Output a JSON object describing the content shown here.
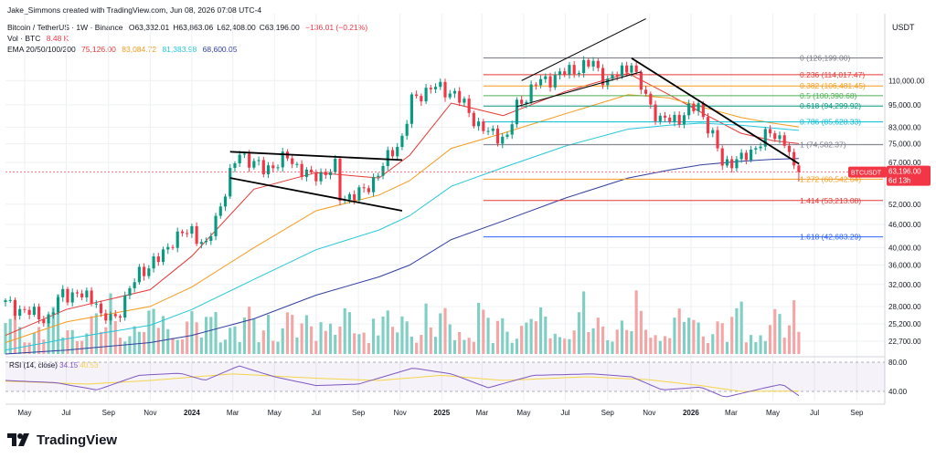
{
  "header": {
    "created_by": "Jake_Simmons created with TradingView.com, Jun 08, 2026 07:08 UTC-4",
    "symbol": "Bitcoin / TetherUS · 1W · Binance",
    "ohlc": {
      "o": "O63,332.01",
      "h": "H63,863.06",
      "l": "L62,408.00",
      "c": "C63,196.00",
      "chg": "−136.01 (−0.21%)"
    },
    "vol_label": "Vol · BTC",
    "vol_value": "8.48 K",
    "ema_label": "EMA 20/50/100/200",
    "ema_values": [
      {
        "value": "75,126.00",
        "color": "#e53935"
      },
      {
        "value": "83,084.72",
        "color": "#f59b1c"
      },
      {
        "value": "81,383.98",
        "color": "#26c6da"
      },
      {
        "value": "68,600.05",
        "color": "#303f9f"
      }
    ]
  },
  "currency": "USDT",
  "price_badge": {
    "symbol": "BTCUSDT",
    "price": "63,196.00",
    "countdown": "6d 13h"
  },
  "footer": {
    "brand": "TradingView"
  },
  "chart_data": {
    "type": "candlestick",
    "log_scale": true,
    "ylim": [
      21000,
      165000
    ],
    "y_ticks": [
      {
        "label": "110,000.00",
        "value": 110000
      },
      {
        "label": "95,000.00",
        "value": 95000
      },
      {
        "label": "83,000.00",
        "value": 83000
      },
      {
        "label": "75,000.00",
        "value": 75000
      },
      {
        "label": "67,000.00",
        "value": 67000
      },
      {
        "label": "52,000.00",
        "value": 52000
      },
      {
        "label": "46,000.00",
        "value": 46000
      },
      {
        "label": "40,000.00",
        "value": 40000
      },
      {
        "label": "36,000.00",
        "value": 36000
      },
      {
        "label": "32,000.00",
        "value": 32000
      },
      {
        "label": "28,000.00",
        "value": 28000
      },
      {
        "label": "25,200.00",
        "value": 25200
      },
      {
        "label": "22,700.00",
        "value": 22700
      }
    ],
    "x_ticks": [
      "May",
      "Jul",
      "Sep",
      "Nov",
      "2024",
      "Mar",
      "May",
      "Jul",
      "Sep",
      "Nov",
      "2025",
      "Mar",
      "May",
      "Jul",
      "Sep",
      "Nov",
      "2026",
      "Mar",
      "May",
      "Jul",
      "Sep"
    ],
    "x_tick_dates": [
      "2023-05-01",
      "2023-07-01",
      "2023-09-01",
      "2023-11-01",
      "2024-01-01",
      "2024-03-01",
      "2024-05-01",
      "2024-07-01",
      "2024-09-01",
      "2024-11-01",
      "2025-01-01",
      "2025-03-01",
      "2025-05-01",
      "2025-07-01",
      "2025-09-01",
      "2025-11-01",
      "2026-01-01",
      "2026-03-01",
      "2026-05-01",
      "2026-07-01",
      "2026-09-01"
    ],
    "x_range": [
      "2023-04-03",
      "2026-10-12"
    ],
    "close_path": [
      [
        "2023-04-03",
        28500
      ],
      [
        "2023-05-01",
        27200
      ],
      [
        "2023-06-05",
        26000
      ],
      [
        "2023-06-26",
        30500
      ],
      [
        "2023-08-14",
        29300
      ],
      [
        "2023-08-21",
        26000
      ],
      [
        "2023-09-11",
        26200
      ],
      [
        "2023-10-16",
        34500
      ],
      [
        "2023-11-13",
        37200
      ],
      [
        "2023-12-04",
        42000
      ],
      [
        "2024-01-01",
        44500
      ],
      [
        "2024-01-22",
        40000
      ],
      [
        "2024-02-26",
        62000
      ],
      [
        "2024-03-11",
        71000
      ],
      [
        "2024-04-15",
        64000
      ],
      [
        "2024-05-20",
        69000
      ],
      [
        "2024-06-24",
        61000
      ],
      [
        "2024-07-29",
        65000
      ],
      [
        "2024-08-05",
        54000
      ],
      [
        "2024-09-09",
        56000
      ],
      [
        "2024-09-30",
        63000
      ],
      [
        "2024-11-04",
        78000
      ],
      [
        "2024-11-18",
        97000
      ],
      [
        "2024-12-16",
        106000
      ],
      [
        "2025-01-20",
        102000
      ],
      [
        "2025-02-24",
        84000
      ],
      [
        "2025-03-10",
        80000
      ],
      [
        "2025-04-07",
        78000
      ],
      [
        "2025-04-21",
        94000
      ],
      [
        "2025-05-19",
        108000
      ],
      [
        "2025-07-14",
        118000
      ],
      [
        "2025-08-11",
        122000
      ],
      [
        "2025-09-01",
        109000
      ],
      [
        "2025-10-06",
        123000
      ],
      [
        "2025-10-13",
        111000
      ],
      [
        "2025-11-17",
        86000
      ],
      [
        "2025-12-15",
        88000
      ],
      [
        "2026-01-12",
        95000
      ],
      [
        "2026-02-02",
        78000
      ],
      [
        "2026-02-16",
        67000
      ],
      [
        "2026-03-16",
        68000
      ],
      [
        "2026-04-13",
        76000
      ],
      [
        "2026-04-27",
        80000
      ],
      [
        "2026-05-18",
        77000
      ],
      [
        "2026-06-01",
        63332
      ],
      [
        "2026-06-08",
        63196
      ]
    ],
    "ema_series": [
      {
        "name": "EMA 20",
        "color": "#e53935",
        "points": [
          [
            "2023-04-03",
            23500
          ],
          [
            "2023-07-01",
            27500
          ],
          [
            "2023-11-01",
            31000
          ],
          [
            "2024-01-01",
            38000
          ],
          [
            "2024-04-01",
            57000
          ],
          [
            "2024-07-01",
            63000
          ],
          [
            "2024-10-01",
            61000
          ],
          [
            "2024-11-15",
            70000
          ],
          [
            "2025-01-15",
            96000
          ],
          [
            "2025-04-01",
            89000
          ],
          [
            "2025-07-01",
            103000
          ],
          [
            "2025-10-01",
            115000
          ],
          [
            "2025-11-30",
            101000
          ],
          [
            "2026-01-15",
            91000
          ],
          [
            "2026-03-15",
            80000
          ],
          [
            "2026-05-01",
            76500
          ],
          [
            "2026-06-08",
            75126
          ]
        ]
      },
      {
        "name": "EMA 50",
        "color": "#f59b1c",
        "points": [
          [
            "2023-04-03",
            22500
          ],
          [
            "2023-07-01",
            25500
          ],
          [
            "2023-11-01",
            28000
          ],
          [
            "2024-01-01",
            31500
          ],
          [
            "2024-04-01",
            40000
          ],
          [
            "2024-07-01",
            50000
          ],
          [
            "2024-10-01",
            55000
          ],
          [
            "2024-11-15",
            60000
          ],
          [
            "2025-01-15",
            73000
          ],
          [
            "2025-04-01",
            80000
          ],
          [
            "2025-07-01",
            90000
          ],
          [
            "2025-10-01",
            101000
          ],
          [
            "2025-11-30",
            99000
          ],
          [
            "2026-01-15",
            94000
          ],
          [
            "2026-03-15",
            88000
          ],
          [
            "2026-05-01",
            85000
          ],
          [
            "2026-06-08",
            83084.72
          ]
        ]
      },
      {
        "name": "EMA 100",
        "color": "#26c6da",
        "points": [
          [
            "2023-04-03",
            21500
          ],
          [
            "2023-07-01",
            23000
          ],
          [
            "2023-11-01",
            25000
          ],
          [
            "2024-01-01",
            27500
          ],
          [
            "2024-04-01",
            33000
          ],
          [
            "2024-07-01",
            39500
          ],
          [
            "2024-10-01",
            44500
          ],
          [
            "2024-11-15",
            48500
          ],
          [
            "2025-01-15",
            58000
          ],
          [
            "2025-04-01",
            65000
          ],
          [
            "2025-07-01",
            74000
          ],
          [
            "2025-10-01",
            82000
          ],
          [
            "2025-11-30",
            84000
          ],
          [
            "2026-01-15",
            85000
          ],
          [
            "2026-03-15",
            84000
          ],
          [
            "2026-05-01",
            82500
          ],
          [
            "2026-06-08",
            81383.98
          ]
        ]
      },
      {
        "name": "EMA 200",
        "color": "#303f9f",
        "points": [
          [
            "2023-04-03",
            21000
          ],
          [
            "2023-07-01",
            21500
          ],
          [
            "2023-11-01",
            22500
          ],
          [
            "2024-01-01",
            23500
          ],
          [
            "2024-04-01",
            26000
          ],
          [
            "2024-07-01",
            30000
          ],
          [
            "2024-10-01",
            33500
          ],
          [
            "2024-11-15",
            36000
          ],
          [
            "2025-01-15",
            42000
          ],
          [
            "2025-04-01",
            47000
          ],
          [
            "2025-07-01",
            54000
          ],
          [
            "2025-10-01",
            61000
          ],
          [
            "2025-11-30",
            64000
          ],
          [
            "2026-01-15",
            66000
          ],
          [
            "2026-03-15",
            67500
          ],
          [
            "2026-05-01",
            68300
          ],
          [
            "2026-06-08",
            68600.05
          ]
        ]
      }
    ],
    "fib_levels": [
      {
        "ratio": "0",
        "price": 126199.0,
        "label": "0 (126,199.00)",
        "color": "#787b86"
      },
      {
        "ratio": "0.236",
        "price": 114017.47,
        "label": "0.236 (114,017.47)",
        "color": "#e53935"
      },
      {
        "ratio": "0.382",
        "price": 106481.45,
        "label": "0.382 (106,481.45)",
        "color": "#f59b1c"
      },
      {
        "ratio": "0.5",
        "price": 100390.68,
        "label": "0.5 (100,390.68)",
        "color": "#4caf50"
      },
      {
        "ratio": "0.618",
        "price": 94299.92,
        "label": "0.618 (94,299.92)",
        "color": "#089981"
      },
      {
        "ratio": "0.786",
        "price": 85628.33,
        "label": "0.786 (85,628.33)",
        "color": "#00bcd4"
      },
      {
        "ratio": "1",
        "price": 74582.37,
        "label": "1 (74,582.37)",
        "color": "#787b86"
      },
      {
        "ratio": "1.272",
        "price": 60542.64,
        "label": "1.272 (60,542.64)",
        "color": "#f59b1c"
      },
      {
        "ratio": "1.414",
        "price": 53213.08,
        "label": "1.414 (53,213.08)",
        "color": "#e53935"
      },
      {
        "ratio": "1.618",
        "price": 42683.29,
        "label": "1.618 (42,683.29)",
        "color": "#2962ff"
      }
    ],
    "fib_start_date": "2025-03-03",
    "trendlines": [
      {
        "name": "flag-upper",
        "points": [
          [
            "2024-02-26",
            71500
          ],
          [
            "2024-11-04",
            68000
          ]
        ]
      },
      {
        "name": "flag-lower",
        "points": [
          [
            "2024-02-26",
            61000
          ],
          [
            "2024-11-04",
            50000
          ]
        ]
      },
      {
        "name": "channel-upper",
        "points": [
          [
            "2025-04-28",
            110000
          ],
          [
            "2025-10-27",
            160000
          ]
        ]
      },
      {
        "name": "channel-lower",
        "points": [
          [
            "2025-04-21",
            94000
          ],
          [
            "2025-10-20",
            116000
          ]
        ]
      },
      {
        "name": "downtrend",
        "points": [
          [
            "2025-10-06",
            126000
          ],
          [
            "2026-06-08",
            66500
          ]
        ]
      }
    ],
    "rsi": {
      "label": "RSI (14, close)",
      "value": "34.15",
      "ma_value": "40.53",
      "levels": [
        {
          "label": "80.00",
          "value": 80
        },
        {
          "label": "40.00",
          "value": 40
        }
      ],
      "ylim": [
        30,
        85
      ],
      "line_color": "#7e57c2",
      "ma_color": "#f5d547",
      "points": [
        [
          "2023-04-03",
          55
        ],
        [
          "2023-06-15",
          52
        ],
        [
          "2023-08-15",
          42
        ],
        [
          "2023-10-15",
          62
        ],
        [
          "2023-12-15",
          65
        ],
        [
          "2024-01-20",
          55
        ],
        [
          "2024-03-10",
          75
        ],
        [
          "2024-05-01",
          60
        ],
        [
          "2024-07-01",
          48
        ],
        [
          "2024-09-01",
          50
        ],
        [
          "2024-11-20",
          72
        ],
        [
          "2025-01-15",
          64
        ],
        [
          "2025-03-10",
          45
        ],
        [
          "2025-05-15",
          62
        ],
        [
          "2025-08-10",
          64
        ],
        [
          "2025-10-06",
          60
        ],
        [
          "2025-11-20",
          42
        ],
        [
          "2026-01-15",
          46
        ],
        [
          "2026-02-20",
          32
        ],
        [
          "2026-04-20",
          45
        ],
        [
          "2026-05-15",
          50
        ],
        [
          "2026-06-08",
          34.15
        ]
      ],
      "ma_points": [
        [
          "2023-04-03",
          54
        ],
        [
          "2023-08-01",
          50
        ],
        [
          "2023-11-01",
          55
        ],
        [
          "2024-03-01",
          64
        ],
        [
          "2024-07-01",
          58
        ],
        [
          "2024-10-01",
          55
        ],
        [
          "2025-01-01",
          62
        ],
        [
          "2025-04-01",
          55
        ],
        [
          "2025-08-01",
          60
        ],
        [
          "2025-11-01",
          56
        ],
        [
          "2026-01-15",
          48
        ],
        [
          "2026-03-15",
          40
        ],
        [
          "2026-06-08",
          40.53
        ]
      ]
    },
    "volume_profile": {
      "description": "weekly volume bars at bottom of price pane, green up / red down",
      "up_color": "#7fcfc4",
      "down_color": "#f4a6a6"
    },
    "colors": {
      "up": "#089981",
      "down": "#f23645",
      "grid": "#eef0f3"
    }
  }
}
